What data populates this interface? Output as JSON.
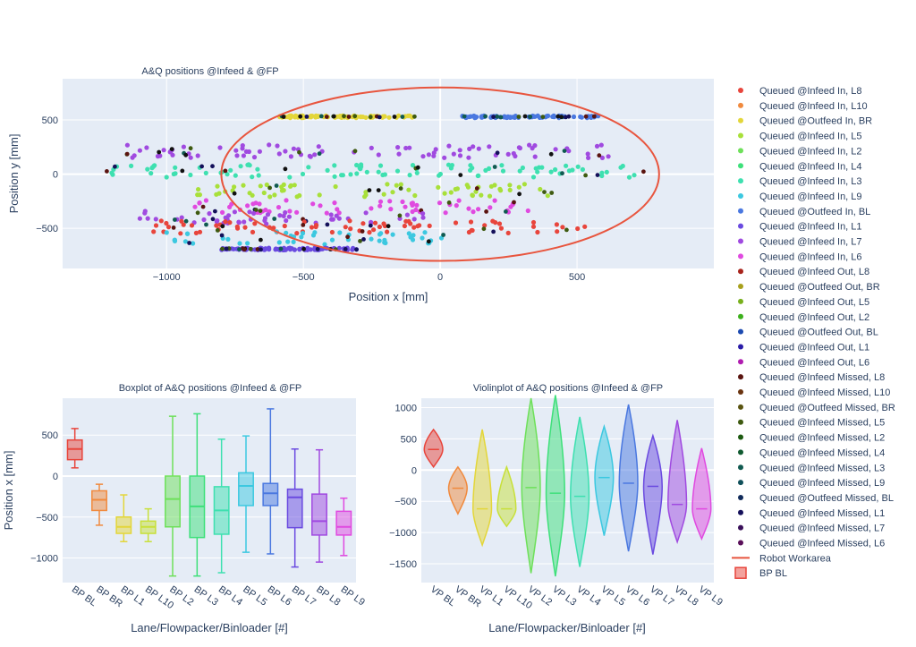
{
  "colors": {
    "plot_bg": "#e5ecf6",
    "grid": "#ffffff",
    "workarea": "#e8553e"
  },
  "scatter": {
    "title": "A&Q positions @Infeed & @FP",
    "xlabel": "Position x [mm]",
    "ylabel": "Position y [mm]",
    "xticks": [
      "−1000",
      "−500",
      "0",
      "500"
    ],
    "yticks": [
      "500",
      "0",
      "−500"
    ]
  },
  "box": {
    "title": "Boxplot of A&Q positions @Infeed & @FP",
    "xlabel": "Lane/Flowpacker/Binloader [#]",
    "ylabel": "Position x [mm]",
    "yticks": [
      "500",
      "0",
      "−500",
      "−1000"
    ]
  },
  "violin": {
    "title": "Violinplot of A&Q positions @Infeed & @FP",
    "xlabel": "Lane/Flowpacker/Binloader [#]",
    "yticks": [
      "1000",
      "500",
      "0",
      "−500",
      "−1000",
      "−1500"
    ]
  },
  "legend": [
    {
      "label": "Queued @Infeed In, L8",
      "color": "#e8453c"
    },
    {
      "label": "Queued @Infeed In, L10",
      "color": "#f08a3e"
    },
    {
      "label": "Queued @Outfeed In, BR",
      "color": "#e3d63a"
    },
    {
      "label": "Queued @Infeed In, L5",
      "color": "#a8e03a"
    },
    {
      "label": "Queued @Infeed In, L2",
      "color": "#6ee05a"
    },
    {
      "label": "Queued @Infeed In, L4",
      "color": "#3ee07a"
    },
    {
      "label": "Queued @Infeed In, L3",
      "color": "#3ee0b0"
    },
    {
      "label": "Queued @Infeed In, L9",
      "color": "#3cc8e0"
    },
    {
      "label": "Queued @Outfeed In, BL",
      "color": "#4a78e0"
    },
    {
      "label": "Queued @Infeed In, L1",
      "color": "#6a4ae0"
    },
    {
      "label": "Queued @Infeed In, L7",
      "color": "#a04ae0"
    },
    {
      "label": "Queued @Infeed In, L6",
      "color": "#e04ae0"
    },
    {
      "label": "Queued @Infeed Out, L8",
      "color": "#a8241c"
    },
    {
      "label": "Queued @Outfeed Out, BR",
      "color": "#a8a01c"
    },
    {
      "label": "Queued @Infeed Out, L5",
      "color": "#78b01c"
    },
    {
      "label": "Queued @Infeed Out, L2",
      "color": "#3cb01c"
    },
    {
      "label": "Queued @Outfeed Out, BL",
      "color": "#1c4ab0"
    },
    {
      "label": "Queued @Infeed Out, L1",
      "color": "#2a1ca8"
    },
    {
      "label": "Queued @Infeed Out, L6",
      "color": "#b01cb0"
    },
    {
      "label": "Queued @Infeed Missed, L8",
      "color": "#5a1410"
    },
    {
      "label": "Queued @Infeed Missed, L10",
      "color": "#6a3410"
    },
    {
      "label": "Queued @Outfeed Missed, BR",
      "color": "#5a5410"
    },
    {
      "label": "Queued @Infeed Missed, L5",
      "color": "#3e5a10"
    },
    {
      "label": "Queued @Infeed Missed, L2",
      "color": "#1c5a10"
    },
    {
      "label": "Queued @Infeed Missed, L4",
      "color": "#105a30"
    },
    {
      "label": "Queued @Infeed Missed, L3",
      "color": "#105a50"
    },
    {
      "label": "Queued @Infeed Missed, L9",
      "color": "#10505a"
    },
    {
      "label": "Queued @Outfeed Missed, BL",
      "color": "#102a5a"
    },
    {
      "label": "Queued @Infeed Missed, L1",
      "color": "#14105a"
    },
    {
      "label": "Queued @Infeed Missed, L7",
      "color": "#3a105a"
    },
    {
      "label": "Queued @Infeed Missed, L6",
      "color": "#5a105a"
    },
    {
      "label": "Robot Workarea",
      "color": "#e8553e",
      "kind": "line"
    },
    {
      "label": "BP BL",
      "color": "#e8453c",
      "kind": "box"
    }
  ],
  "chart_data": [
    {
      "type": "scatter",
      "title": "A&Q positions @Infeed & @FP",
      "xlabel": "Position x [mm]",
      "ylabel": "Position y [mm]",
      "xlim": [
        -1380,
        1000
      ],
      "ylim": [
        -870,
        880
      ],
      "ellipse": {
        "name": "Robot Workarea",
        "cx": 0,
        "cy": 0,
        "rx": 800,
        "ry": 800,
        "shape": "ellipse"
      },
      "clusters": [
        {
          "name": "Queued @Outfeed In, BR",
          "y": 530,
          "x_range": [
            -590,
            -80
          ],
          "density": "dense"
        },
        {
          "name": "Queued @Outfeed In, BL",
          "y": 530,
          "x_range": [
            80,
            580
          ],
          "density": "dense"
        },
        {
          "name": "Queued @Infeed In, L7",
          "y": 210,
          "x_range": [
            -1150,
            630
          ]
        },
        {
          "name": "Queued @Infeed In, L3",
          "y": 30,
          "x_range": [
            -1250,
            760
          ]
        },
        {
          "name": "Queued @Infeed In, L5",
          "y": -150,
          "x_range": [
            -900,
            450
          ]
        },
        {
          "name": "Queued @Infeed In, L6",
          "y": -300,
          "x_range": [
            -900,
            350
          ]
        },
        {
          "name": "Queued @Infeed In, L7",
          "y": -400,
          "x_range": [
            -1100,
            -50
          ]
        },
        {
          "name": "Queued @Infeed In, L8",
          "y": -490,
          "x_range": [
            -1050,
            550
          ]
        },
        {
          "name": "Queued @Infeed In, L9",
          "y": -590,
          "x_range": [
            -1000,
            20
          ]
        },
        {
          "name": "Queued @Infeed In, L1",
          "y": -690,
          "x_range": [
            -800,
            -300
          ],
          "density": "dense"
        }
      ]
    },
    {
      "type": "box",
      "title": "Boxplot of A&Q positions @Infeed & @FP",
      "xlabel": "Lane/Flowpacker/Binloader [#]",
      "ylabel": "Position x [mm]",
      "ylim": [
        -1300,
        950
      ],
      "categories": [
        "BP BL",
        "BP BR",
        "BP L1",
        "BP L10",
        "BP L2",
        "BP L3",
        "BP L4",
        "BP L5",
        "BP L6",
        "BP L7",
        "BP L8",
        "BP L9"
      ],
      "boxes": [
        {
          "min": 100,
          "q1": 200,
          "median": 330,
          "q3": 440,
          "max": 580
        },
        {
          "min": -600,
          "q1": -420,
          "median": -290,
          "q3": -180,
          "max": -100
        },
        {
          "min": -800,
          "q1": -700,
          "median": -620,
          "q3": -500,
          "max": -230
        },
        {
          "min": -800,
          "q1": -700,
          "median": -620,
          "q3": -550,
          "max": -400
        },
        {
          "min": -1220,
          "q1": -620,
          "median": -280,
          "q3": 0,
          "max": 730
        },
        {
          "min": -1220,
          "q1": -750,
          "median": -370,
          "q3": 0,
          "max": 760
        },
        {
          "min": -1180,
          "q1": -710,
          "median": -420,
          "q3": -130,
          "max": 450
        },
        {
          "min": -930,
          "q1": -360,
          "median": -120,
          "q3": 40,
          "max": 490
        },
        {
          "min": -950,
          "q1": -360,
          "median": -210,
          "q3": -90,
          "max": 820
        },
        {
          "min": -1110,
          "q1": -630,
          "median": -260,
          "q3": -160,
          "max": 330
        },
        {
          "min": -1050,
          "q1": -720,
          "median": -550,
          "q3": -220,
          "max": 320
        },
        {
          "min": -970,
          "q1": -720,
          "median": -620,
          "q3": -430,
          "max": -270
        }
      ]
    },
    {
      "type": "violin",
      "title": "Violinplot of A&Q positions @Infeed & @FP",
      "xlabel": "Lane/Flowpacker/Binloader [#]",
      "ylim": [
        -1800,
        1150
      ],
      "categories": [
        "VP BL",
        "VP BR",
        "VP L1",
        "VP L10",
        "VP L2",
        "VP L3",
        "VP L4",
        "VP L5",
        "VP L6",
        "VP L7",
        "VP L8",
        "VP L9"
      ],
      "violins": [
        {
          "min": 50,
          "max": 650,
          "median": 330
        },
        {
          "min": -700,
          "max": 50,
          "median": -290
        },
        {
          "min": -1200,
          "max": 650,
          "median": -620
        },
        {
          "min": -900,
          "max": 50,
          "median": -620
        },
        {
          "min": -1650,
          "max": 1150,
          "median": -280
        },
        {
          "min": -1700,
          "max": 1200,
          "median": -370
        },
        {
          "min": -1550,
          "max": 850,
          "median": -420
        },
        {
          "min": -1050,
          "max": 700,
          "median": -120
        },
        {
          "min": -1300,
          "max": 1050,
          "median": -210
        },
        {
          "min": -1350,
          "max": 550,
          "median": -260
        },
        {
          "min": -1150,
          "max": 800,
          "median": -550
        },
        {
          "min": -1100,
          "max": 350,
          "median": -620
        }
      ]
    }
  ]
}
